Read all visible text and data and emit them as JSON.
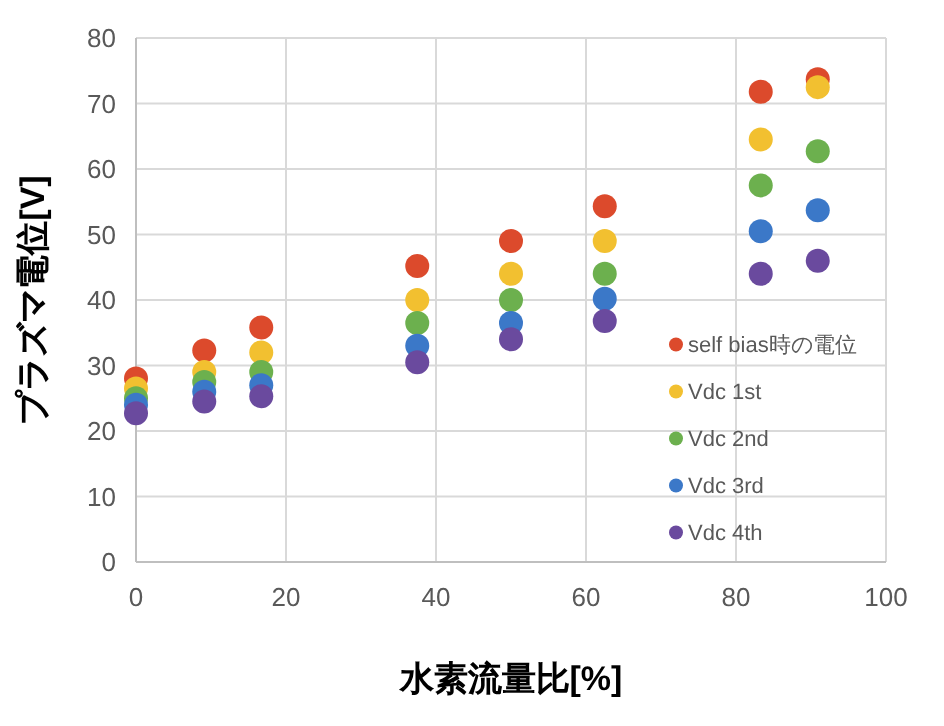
{
  "chart_data": {
    "type": "scatter",
    "xlabel": "水素流量比[%]",
    "ylabel": "プラズマ電位[V]",
    "x": [
      0,
      9.1,
      16.7,
      37.5,
      50,
      62.5,
      83.3,
      90.9
    ],
    "series": [
      {
        "name": "self bias時の電位",
        "color": "#dc4a2c",
        "values": [
          28,
          32.3,
          35.8,
          45.2,
          49,
          54.3,
          71.8,
          73.7
        ]
      },
      {
        "name": "Vdc 1st",
        "color": "#f2c030",
        "values": [
          26.5,
          29,
          32,
          40,
          44,
          49,
          64.5,
          72.5
        ]
      },
      {
        "name": "Vdc 2nd",
        "color": "#6cb04e",
        "values": [
          25,
          27.5,
          29,
          36.5,
          40,
          44,
          57.5,
          62.7
        ]
      },
      {
        "name": "Vdc 3rd",
        "color": "#3b78c8",
        "values": [
          24,
          26,
          27,
          33,
          36.5,
          40.2,
          50.5,
          53.7
        ]
      },
      {
        "name": "Vdc 4th",
        "color": "#6a4a9e",
        "values": [
          22.7,
          24.5,
          25.3,
          30.5,
          34,
          36.8,
          44,
          46
        ]
      }
    ],
    "xlim": [
      0,
      100
    ],
    "ylim": [
      0,
      80
    ],
    "xticks": [
      0,
      20,
      40,
      60,
      80,
      100
    ],
    "yticks": [
      0,
      10,
      20,
      30,
      40,
      50,
      60,
      70,
      80
    ],
    "grid": true,
    "legend": "bottom right",
    "marker": "circle"
  }
}
